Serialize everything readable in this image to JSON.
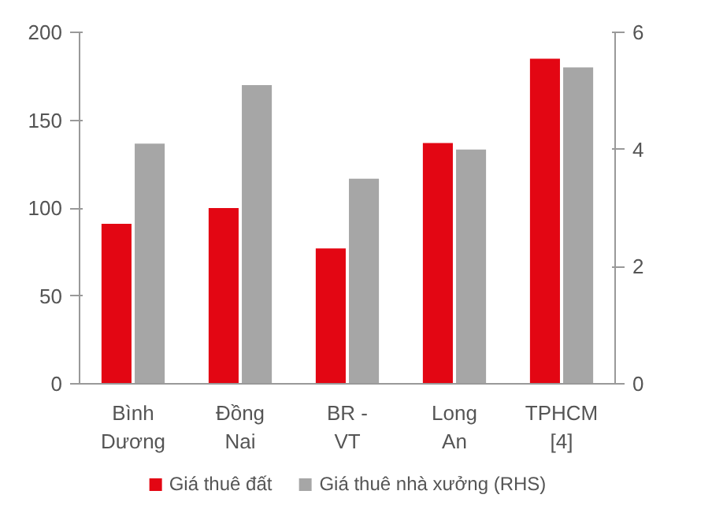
{
  "chart_data": {
    "type": "bar",
    "categories": [
      "Bình Dương",
      "Đồng Nai",
      "BR - VT",
      "Long An",
      "TPHCM [4]"
    ],
    "series": [
      {
        "name": "Giá thuê đất",
        "color": "#e30613",
        "values": [
          91,
          100,
          77,
          137,
          185
        ]
      },
      {
        "name": "Giá thuê nhà xưởng (RHS)",
        "color": "#a6a6a6",
        "values": [
          4.1,
          5.1,
          3.5,
          4.0,
          5.4
        ],
        "axis": "y2"
      }
    ],
    "ylim": [
      0,
      200
    ],
    "yticks": [
      0,
      50,
      100,
      150,
      200
    ],
    "y2lim": [
      0,
      6
    ],
    "y2ticks": [
      0,
      2,
      4,
      6
    ],
    "grid": false,
    "legend": "bottom"
  }
}
